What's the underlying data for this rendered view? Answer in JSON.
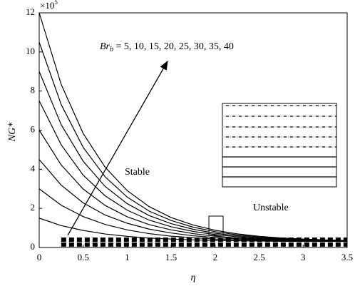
{
  "chart_data": {
    "type": "line",
    "y_multiplier": "×10",
    "y_multiplier_exponent": "5",
    "xlabel": "η",
    "ylabel": "NG*",
    "annotation": {
      "text": "Br",
      "sub": "b",
      "rest": " = 5, 10, 15, 20, 25, 30, 35, 40"
    },
    "region_labels": [
      "Stable",
      "Unstable"
    ],
    "x": [
      0,
      0.25,
      0.5,
      0.75,
      1,
      1.25,
      1.5,
      1.75,
      2,
      2.25,
      2.5,
      2.75,
      3,
      3.25,
      3.5
    ],
    "series": [
      {
        "color": "#000000",
        "values": [
          1.5,
          1.12,
          0.87,
          0.69,
          0.57,
          0.48,
          0.43,
          0.39,
          0.36,
          0.34,
          0.33,
          0.32,
          0.31,
          0.31,
          0.31
        ]
      },
      {
        "color": "#000000",
        "values": [
          3,
          2.16,
          1.58,
          1.18,
          0.9,
          0.71,
          0.58,
          0.5,
          0.43,
          0.39,
          0.36,
          0.34,
          0.33,
          0.32,
          0.31
        ]
      },
      {
        "color": "#000000",
        "values": [
          4.5,
          3.19,
          2.28,
          1.66,
          1.24,
          0.94,
          0.74,
          0.6,
          0.51,
          0.44,
          0.4,
          0.37,
          0.35,
          0.33,
          0.32
        ]
      },
      {
        "color": "#000000",
        "values": [
          6,
          4.22,
          2.99,
          2.15,
          1.57,
          1.17,
          0.9,
          0.71,
          0.58,
          0.49,
          0.43,
          0.39,
          0.36,
          0.34,
          0.33
        ]
      },
      {
        "color": "#000000",
        "values": [
          7.5,
          5.25,
          3.7,
          2.64,
          1.91,
          1.4,
          1.06,
          0.82,
          0.66,
          0.55,
          0.47,
          0.42,
          0.38,
          0.35,
          0.34
        ]
      },
      {
        "color": "#000000",
        "values": [
          9,
          6.28,
          4.41,
          3.12,
          2.24,
          1.63,
          1.22,
          0.93,
          0.73,
          0.6,
          0.5,
          0.44,
          0.4,
          0.37,
          0.35
        ]
      },
      {
        "color": "#000000",
        "values": [
          10.5,
          7.31,
          5.12,
          3.61,
          2.58,
          1.86,
          1.38,
          1.04,
          0.81,
          0.65,
          0.54,
          0.47,
          0.41,
          0.38,
          0.35
        ]
      },
      {
        "color": "#000000",
        "values": [
          12,
          8.34,
          5.83,
          4.1,
          2.91,
          2.09,
          1.53,
          1.15,
          0.88,
          0.7,
          0.57,
          0.49,
          0.43,
          0.39,
          0.36
        ]
      },
      {
        "color": "#000000",
        "dashed": true,
        "values": [
          null,
          0.4,
          0.4,
          0.4,
          0.4,
          0.4,
          0.4,
          0.4,
          0.4,
          0.4,
          0.4,
          0.4,
          0.4,
          0.4,
          0.4
        ]
      },
      {
        "color": "#000000",
        "dashed": true,
        "values": [
          null,
          0.15,
          0.15,
          0.15,
          0.15,
          0.15,
          0.15,
          0.15,
          0.15,
          0.15,
          0.15,
          0.15,
          0.15,
          0.15,
          0.15
        ]
      }
    ],
    "xlim": [
      0,
      3.5
    ],
    "xticks": [
      0,
      0.5,
      1,
      1.5,
      2,
      2.5,
      3,
      3.5
    ],
    "ylim": [
      0,
      12
    ],
    "yticks": [
      0,
      2,
      4,
      6,
      8,
      10,
      12
    ],
    "grid": false
  }
}
